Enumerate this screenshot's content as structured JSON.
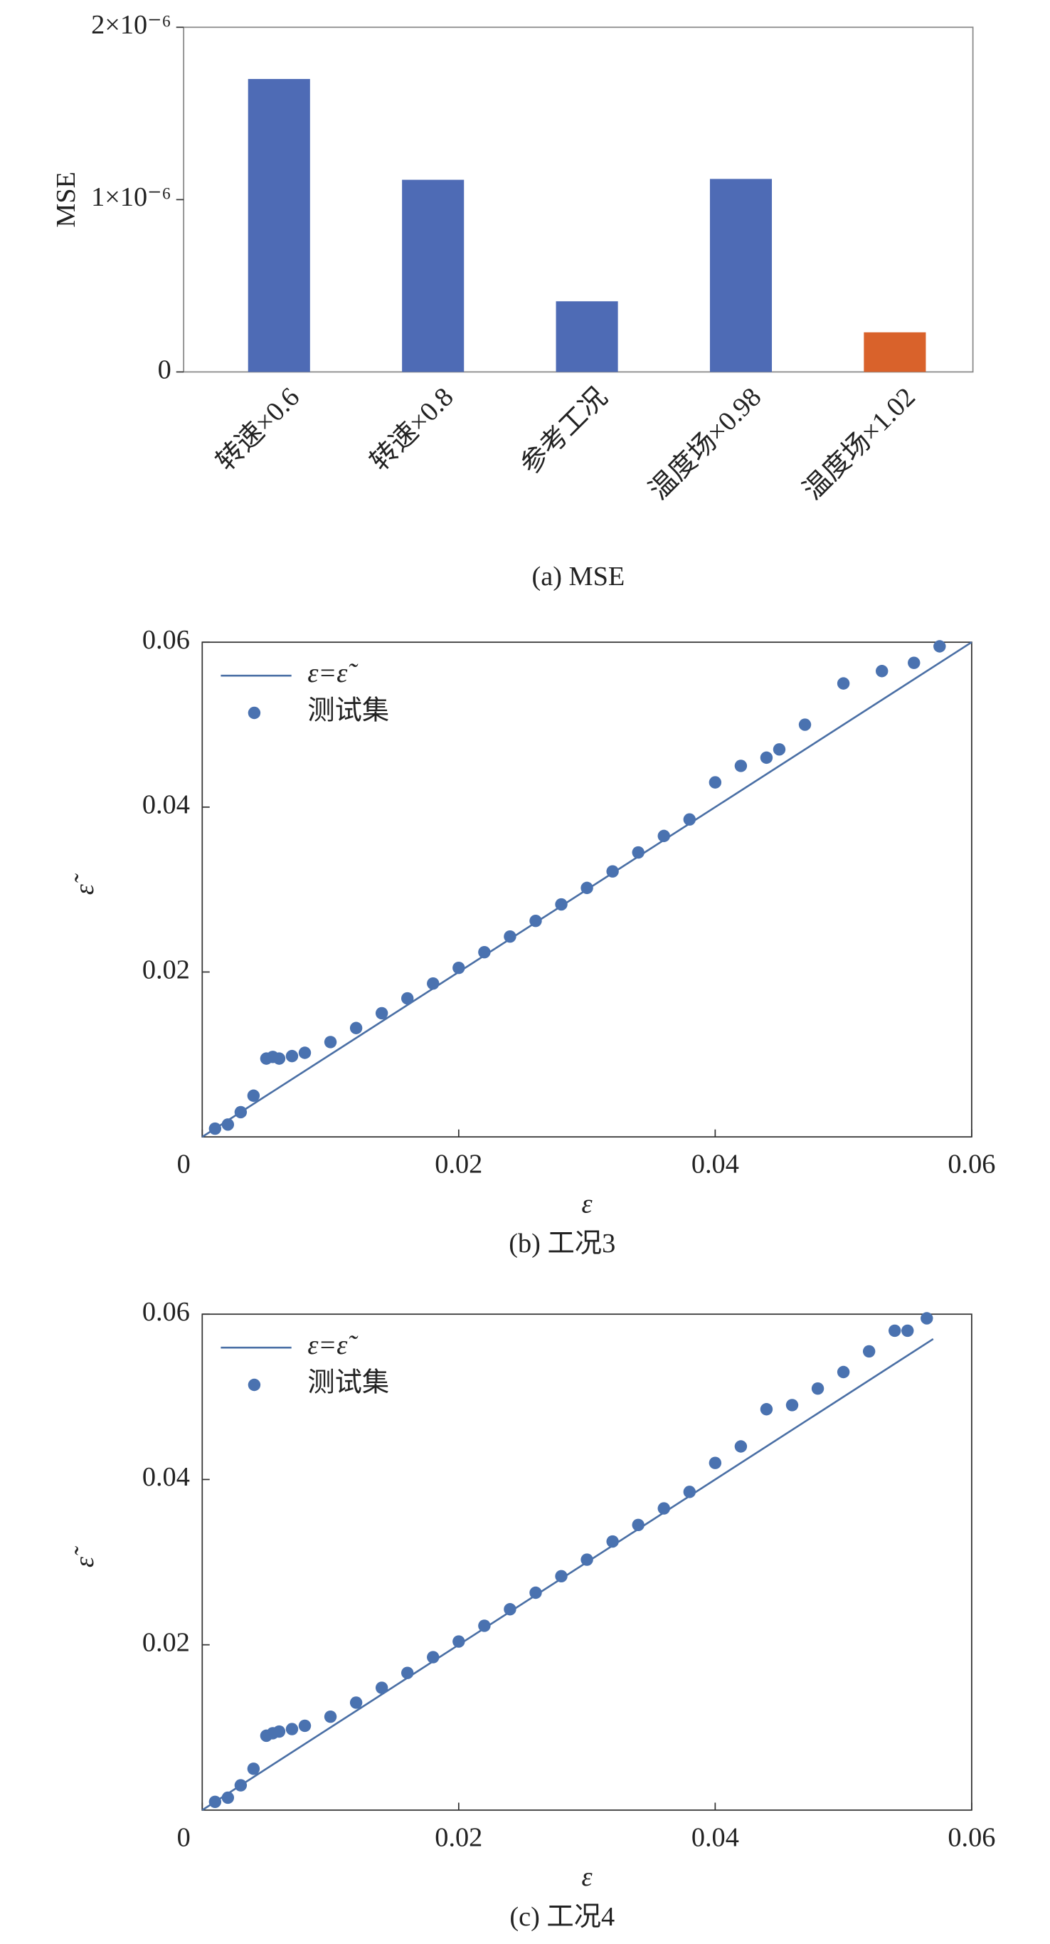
{
  "chart_data": [
    {
      "type": "bar",
      "caption": "(a) MSE",
      "ylabel": "MSE",
      "categories": [
        "转速×0.6",
        "转速×0.8",
        "参考工况",
        "温度场×0.98",
        "温度场×1.02"
      ],
      "values": [
        1.7e-06,
        1.115e-06,
        4.1e-07,
        1.12e-06,
        2.3e-07
      ],
      "colors": [
        "#4e6bb5",
        "#4e6bb5",
        "#4e6bb5",
        "#4e6bb5",
        "#d9622b"
      ],
      "ylim": [
        0,
        2e-06
      ],
      "yticks": [
        0,
        {
          "value": 1e-06,
          "label": "1×10⁻⁶"
        },
        {
          "value": 2e-06,
          "label": "2×10⁻⁶"
        }
      ]
    },
    {
      "type": "scatter",
      "caption": "(b) 工况3",
      "xlabel": "ε",
      "ylabel": "ε̃",
      "xlim": [
        0,
        0.06
      ],
      "ylim": [
        0,
        0.06
      ],
      "xticks": [
        0,
        0.02,
        0.04,
        0.06
      ],
      "yticks": [
        0.02,
        0.04,
        0.06
      ],
      "series": [
        {
          "name": "ε=ε̃",
          "kind": "line",
          "color": "#4a6fa5",
          "x": [
            0,
            0.06
          ],
          "values": [
            0,
            0.06
          ]
        },
        {
          "name": "测试集",
          "kind": "points",
          "color": "#4a72b0",
          "x": [
            0.001,
            0.002,
            0.003,
            0.004,
            0.005,
            0.0055,
            0.006,
            0.007,
            0.008,
            0.01,
            0.012,
            0.014,
            0.016,
            0.018,
            0.02,
            0.022,
            0.024,
            0.026,
            0.028,
            0.03,
            0.032,
            0.034,
            0.036,
            0.038,
            0.04,
            0.042,
            0.044,
            0.045,
            0.047,
            0.05,
            0.053,
            0.0555,
            0.0575
          ],
          "values": [
            0.001,
            0.0015,
            0.003,
            0.005,
            0.0095,
            0.0097,
            0.0095,
            0.0098,
            0.0102,
            0.0115,
            0.0132,
            0.015,
            0.0168,
            0.0186,
            0.0205,
            0.0224,
            0.0243,
            0.0262,
            0.0282,
            0.0302,
            0.0322,
            0.0345,
            0.0365,
            0.0385,
            0.043,
            0.045,
            0.046,
            0.047,
            0.05,
            0.055,
            0.0565,
            0.0575,
            0.0595
          ]
        }
      ]
    },
    {
      "type": "scatter",
      "caption": "(c) 工况4",
      "xlabel": "ε",
      "ylabel": "ε̃",
      "xlim": [
        0,
        0.06
      ],
      "ylim": [
        0,
        0.06
      ],
      "xticks": [
        0,
        0.02,
        0.04,
        0.06
      ],
      "yticks": [
        0.02,
        0.04,
        0.06
      ],
      "series": [
        {
          "name": "ε=ε̃",
          "kind": "line",
          "color": "#4a6fa5",
          "x": [
            0,
            0.057
          ],
          "values": [
            0,
            0.057
          ]
        },
        {
          "name": "测试集",
          "kind": "points",
          "color": "#4a72b0",
          "x": [
            0.001,
            0.002,
            0.003,
            0.004,
            0.005,
            0.0055,
            0.006,
            0.007,
            0.008,
            0.01,
            0.012,
            0.014,
            0.016,
            0.018,
            0.02,
            0.022,
            0.024,
            0.026,
            0.028,
            0.03,
            0.032,
            0.034,
            0.036,
            0.038,
            0.04,
            0.042,
            0.044,
            0.046,
            0.048,
            0.05,
            0.052,
            0.054,
            0.055,
            0.0565
          ],
          "values": [
            0.001,
            0.0015,
            0.003,
            0.005,
            0.009,
            0.0093,
            0.0095,
            0.0098,
            0.0102,
            0.0113,
            0.013,
            0.0148,
            0.0166,
            0.0185,
            0.0204,
            0.0223,
            0.0243,
            0.0263,
            0.0283,
            0.0303,
            0.0325,
            0.0345,
            0.0365,
            0.0385,
            0.042,
            0.044,
            0.0485,
            0.049,
            0.051,
            0.053,
            0.0555,
            0.058,
            0.058,
            0.0595
          ]
        }
      ]
    }
  ]
}
